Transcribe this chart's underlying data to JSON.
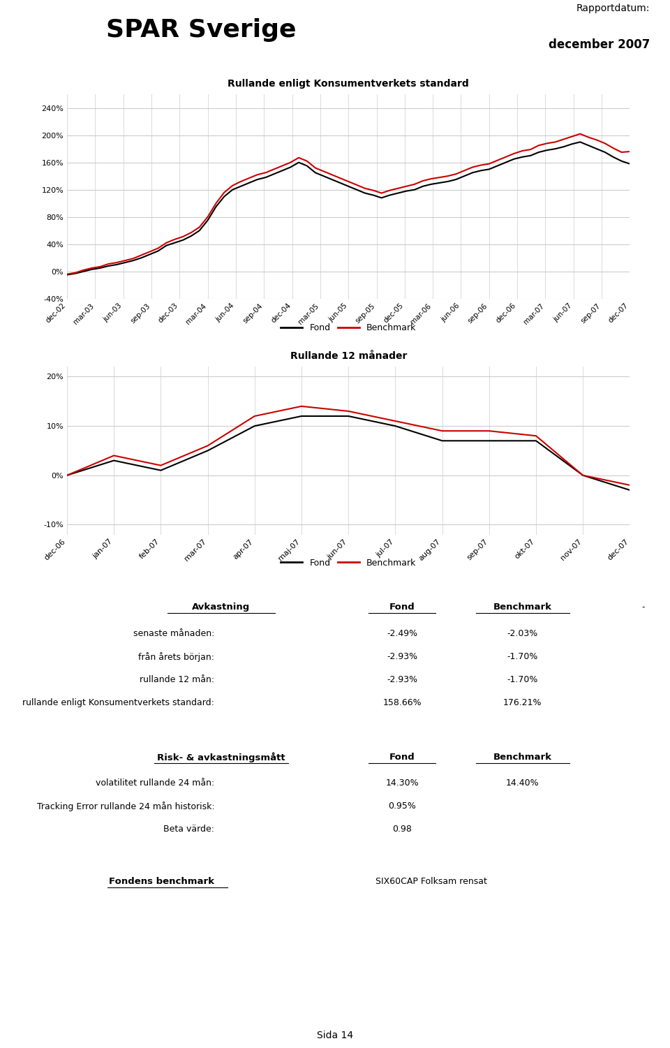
{
  "title": "SPAR Sverige",
  "report_date_label": "Rapportdatum:",
  "report_date": "december 2007",
  "chart1_title": "Rullande enligt Konsumentverkets standard",
  "chart1_xticks": [
    "dec-02",
    "mar-03",
    "jun-03",
    "sep-03",
    "dec-03",
    "mar-04",
    "jun-04",
    "sep-04",
    "dec-04",
    "mar-05",
    "jun-05",
    "sep-05",
    "dec-05",
    "mar-06",
    "jun-06",
    "sep-06",
    "dec-06",
    "mar-07",
    "jun-07",
    "sep-07",
    "dec-07"
  ],
  "chart1_ylim": [
    -40,
    260
  ],
  "chart1_fond": [
    -5,
    -3,
    0,
    3,
    5,
    8,
    10,
    13,
    16,
    20,
    25,
    30,
    38,
    42,
    46,
    52,
    60,
    75,
    95,
    110,
    120,
    125,
    130,
    135,
    138,
    143,
    148,
    153,
    160,
    155,
    145,
    140,
    135,
    130,
    125,
    120,
    115,
    112,
    108,
    112,
    115,
    118,
    120,
    125,
    128,
    130,
    132,
    135,
    140,
    145,
    148,
    150,
    155,
    160,
    165,
    168,
    170,
    175,
    178,
    180,
    183,
    187,
    190,
    185,
    180,
    175,
    168,
    162,
    158
  ],
  "chart1_bench": [
    -4,
    -2,
    2,
    5,
    7,
    11,
    13,
    16,
    19,
    24,
    29,
    34,
    42,
    47,
    51,
    57,
    65,
    80,
    100,
    116,
    126,
    132,
    137,
    142,
    145,
    150,
    155,
    160,
    167,
    162,
    152,
    147,
    142,
    137,
    132,
    127,
    122,
    119,
    115,
    119,
    122,
    125,
    128,
    133,
    136,
    138,
    140,
    143,
    148,
    153,
    156,
    158,
    163,
    168,
    173,
    177,
    179,
    185,
    188,
    190,
    194,
    198,
    202,
    197,
    193,
    188,
    181,
    175,
    176
  ],
  "chart2_title": "Rullande 12 månader",
  "chart2_xticks": [
    "dec-06",
    "jan-07",
    "feb-07",
    "mar-07",
    "apr-07",
    "maj-07",
    "jun-07",
    "jul-07",
    "aug-07",
    "sep-07",
    "okt-07",
    "nov-07",
    "dec-07"
  ],
  "chart2_ylim": [
    -12,
    22
  ],
  "chart2_fond": [
    0,
    3,
    1,
    5,
    10,
    12,
    12,
    10,
    7,
    7,
    7,
    0,
    -3
  ],
  "chart2_bench": [
    0,
    4,
    2,
    6,
    12,
    14,
    13,
    11,
    9,
    9,
    8,
    0,
    -2
  ],
  "table_header_avkastning": "Avkastning",
  "table_header_fond": "Fond",
  "table_header_benchmark": "Benchmark",
  "table_rows": [
    [
      "senaste månaden:",
      "-2.49%",
      "-2.03%"
    ],
    [
      "från årets början:",
      "-2.93%",
      "-1.70%"
    ],
    [
      "rullande 12 mån:",
      "-2.93%",
      "-1.70%"
    ],
    [
      "rullande enligt Konsumentverkets standard:",
      "158.66%",
      "176.21%"
    ]
  ],
  "table_header2_risk": "Risk- & avkastningsmått",
  "table_header2_fond": "Fond",
  "table_header2_benchmark": "Benchmark",
  "table_rows2": [
    [
      "volatilitet rullande 24 mån:",
      "14.30%",
      "14.40%"
    ],
    [
      "Tracking Error rullande 24 mån historisk:",
      "0.95%",
      ""
    ],
    [
      "Beta värde:",
      "0.98",
      ""
    ]
  ],
  "benchmark_label": "Fondens benchmark",
  "benchmark_value": "SIX60CAP Folksam rensat",
  "page_label": "Sida 14",
  "legend_fond": "Fond",
  "legend_bench": "Benchmark",
  "fond_color": "#000000",
  "bench_color": "#cc0000",
  "grid_color": "#cccccc",
  "background_color": "#ffffff"
}
